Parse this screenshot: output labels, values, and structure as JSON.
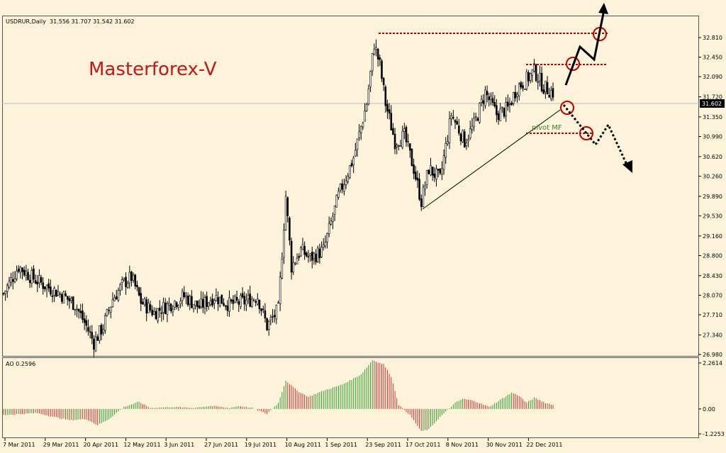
{
  "header": {
    "symbol": "USDRUR,Daily",
    "ohlc": "31.556 31.707 31.542 31.602"
  },
  "watermark": {
    "text": "Masterforex-V",
    "color": "#c41818"
  },
  "pivot_label": "pivot MF",
  "colors": {
    "background": "#fdf3da",
    "resistance": "#c00000",
    "pivot_text": "#2e8b2e",
    "ao_up": "#2e9a2e",
    "ao_down": "#d23030"
  },
  "chart_data": [
    {
      "type": "candlestick",
      "title": "USDRUR,Daily",
      "ylim": [
        26.98,
        33.2
      ],
      "y_ticks": [
        "32.810",
        "32.450",
        "32.090",
        "31.720",
        "31.350",
        "30.990",
        "30.620",
        "30.260",
        "29.890",
        "29.530",
        "29.160",
        "28.800",
        "28.430",
        "28.070",
        "27.710",
        "27.340",
        "26.980"
      ],
      "x_ticks": [
        "7 Mar 2011",
        "29 Mar 2011",
        "20 Apr 2011",
        "12 May 2011",
        "3 Jun 2011",
        "27 Jun 2011",
        "19 Jul 2011",
        "10 Aug 2011",
        "1 Sep 2011",
        "23 Sep 2011",
        "17 Oct 2011",
        "8 Nov 2011",
        "30 Nov 2011",
        "22 Dec 2011"
      ],
      "current_price": "31.602",
      "price_path": [
        [
          0,
          28.1
        ],
        [
          8,
          28.6
        ],
        [
          15,
          28.4
        ],
        [
          22,
          28.25
        ],
        [
          30,
          28.1
        ],
        [
          38,
          27.9
        ],
        [
          44,
          27.5
        ],
        [
          48,
          27.2
        ],
        [
          53,
          27.5
        ],
        [
          58,
          28.0
        ],
        [
          64,
          28.3
        ],
        [
          68,
          28.4
        ],
        [
          73,
          27.95
        ],
        [
          80,
          27.75
        ],
        [
          88,
          27.9
        ],
        [
          96,
          28.05
        ],
        [
          104,
          27.85
        ],
        [
          112,
          28.05
        ],
        [
          120,
          27.9
        ],
        [
          128,
          27.95
        ],
        [
          135,
          28.05
        ],
        [
          140,
          27.5
        ],
        [
          146,
          27.8
        ],
        [
          150,
          29.9
        ],
        [
          153,
          28.6
        ],
        [
          158,
          28.9
        ],
        [
          163,
          28.75
        ],
        [
          170,
          28.9
        ],
        [
          178,
          29.9
        ],
        [
          186,
          30.6
        ],
        [
          193,
          31.6
        ],
        [
          197,
          32.7
        ],
        [
          200,
          32.3
        ],
        [
          203,
          31.6
        ],
        [
          208,
          30.9
        ],
        [
          213,
          31.0
        ],
        [
          218,
          30.4
        ],
        [
          222,
          29.8
        ],
        [
          226,
          30.4
        ],
        [
          232,
          30.2
        ],
        [
          238,
          31.4
        ],
        [
          245,
          30.9
        ],
        [
          250,
          31.2
        ],
        [
          256,
          31.8
        ],
        [
          262,
          31.4
        ],
        [
          268,
          31.5
        ],
        [
          273,
          31.9
        ],
        [
          277,
          32.0
        ],
        [
          282,
          32.2
        ],
        [
          287,
          31.9
        ],
        [
          292,
          31.8
        ]
      ],
      "ao_values": [
        [
          0,
          -0.3
        ],
        [
          18,
          -0.2
        ],
        [
          27,
          -0.4
        ],
        [
          35,
          -0.55
        ],
        [
          44,
          -0.5
        ],
        [
          50,
          -0.8
        ],
        [
          56,
          -0.5
        ],
        [
          64,
          0.1
        ],
        [
          72,
          0.35
        ],
        [
          78,
          0.05
        ],
        [
          90,
          0.1
        ],
        [
          100,
          0.05
        ],
        [
          110,
          0.15
        ],
        [
          120,
          0.05
        ],
        [
          125,
          0.15
        ],
        [
          132,
          0.05
        ],
        [
          140,
          -0.25
        ],
        [
          146,
          0.3
        ],
        [
          150,
          1.4
        ],
        [
          156,
          0.9
        ],
        [
          162,
          0.6
        ],
        [
          170,
          0.9
        ],
        [
          180,
          1.2
        ],
        [
          190,
          1.7
        ],
        [
          196,
          2.4
        ],
        [
          202,
          2.2
        ],
        [
          206,
          1.6
        ],
        [
          210,
          0.2
        ],
        [
          216,
          -0.3
        ],
        [
          222,
          -1.1
        ],
        [
          226,
          -1.0
        ],
        [
          232,
          -0.4
        ],
        [
          240,
          0.3
        ],
        [
          244,
          0.5
        ],
        [
          250,
          0.4
        ],
        [
          258,
          0.1
        ],
        [
          264,
          0.45
        ],
        [
          270,
          0.8
        ],
        [
          274,
          0.65
        ],
        [
          278,
          0.3
        ],
        [
          282,
          0.55
        ],
        [
          288,
          0.3
        ],
        [
          292,
          0.2
        ]
      ],
      "ao_label": "AO 0.2596",
      "ao_ticks": [
        "2.2614",
        "0.00",
        "-1.2253"
      ],
      "annotations": [
        "Masterforex-V",
        "pivot MF"
      ]
    }
  ]
}
